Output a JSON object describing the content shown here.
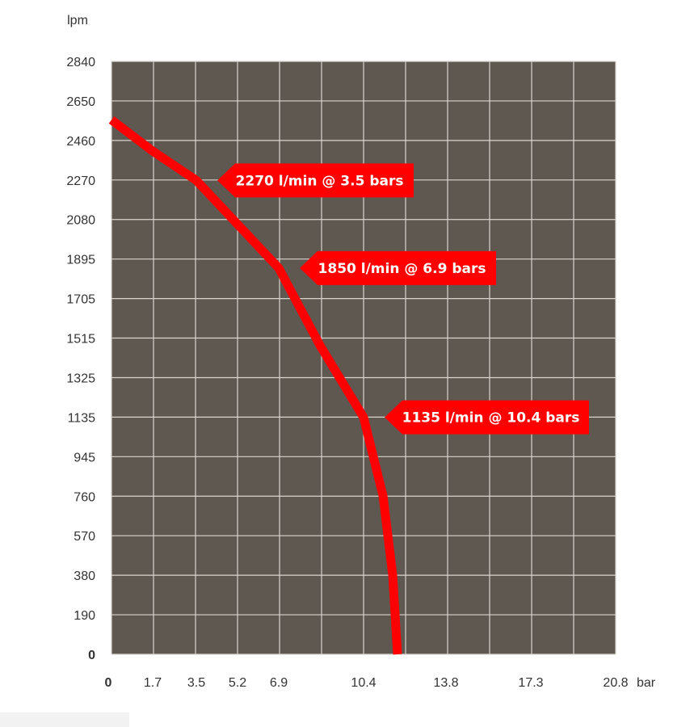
{
  "chart_data": {
    "type": "line",
    "yunit": "lpm",
    "xunit": "bar",
    "y_ticks": [
      "0",
      "190",
      "380",
      "570",
      "760",
      "945",
      "1135",
      "1325",
      "1515",
      "1705",
      "1895",
      "2080",
      "2270",
      "2460",
      "2650",
      "2840"
    ],
    "x_ticks": [
      {
        "label": "0",
        "value": 0
      },
      {
        "label": "1.7",
        "value": 1.7
      },
      {
        "label": "3.5",
        "value": 3.5
      },
      {
        "label": "5.2",
        "value": 5.2
      },
      {
        "label": "6.9",
        "value": 6.9
      },
      {
        "label": "10.4",
        "value": 10.4
      },
      {
        "label": "13.8",
        "value": 13.8
      },
      {
        "label": "17.3",
        "value": 17.3
      },
      {
        "label": "20.8",
        "value": 20.8
      }
    ],
    "xlim": [
      0,
      20.8
    ],
    "ylim": [
      0,
      2840
    ],
    "grid": true,
    "background_color": "#5f5850",
    "grid_color": "#d8d4ce",
    "line_color": "#ff0000",
    "series": [
      {
        "points": [
          {
            "x": 0,
            "y": 2560
          },
          {
            "x": 1.7,
            "y": 2410
          },
          {
            "x": 3.5,
            "y": 2270
          },
          {
            "x": 5.2,
            "y": 2060
          },
          {
            "x": 6.9,
            "y": 1850
          },
          {
            "x": 8.6,
            "y": 1480
          },
          {
            "x": 10.4,
            "y": 1135
          },
          {
            "x": 11.2,
            "y": 760
          },
          {
            "x": 11.6,
            "y": 380
          },
          {
            "x": 11.8,
            "y": 0
          }
        ]
      }
    ],
    "annotations": [
      {
        "text": "2270 l/min @ 3.5 bars",
        "x": 3.5,
        "y": 2270
      },
      {
        "text": "1850 l/min @ 6.9 bars",
        "x": 6.9,
        "y": 1850
      },
      {
        "text": "1135 l/min @ 10.4 bars",
        "x": 10.4,
        "y": 1135
      }
    ]
  }
}
